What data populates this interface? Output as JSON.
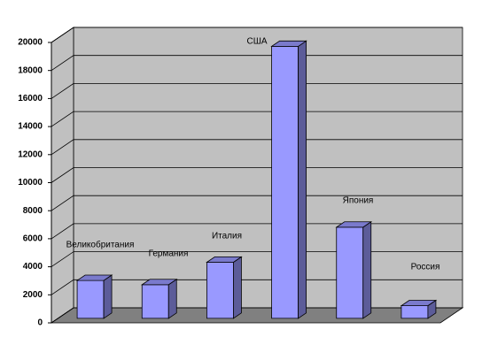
{
  "chart_data": {
    "type": "bar3d",
    "categories": [
      "Великобритания",
      "Германия",
      "Италия",
      "США",
      "Япония",
      "Россия"
    ],
    "values": [
      2700,
      2400,
      4000,
      19400,
      6500,
      900
    ],
    "color": "#9999ff",
    "ylim": [
      0,
      20000
    ],
    "yticks": [
      0,
      2000,
      4000,
      6000,
      8000,
      10000,
      12000,
      14000,
      16000,
      18000,
      20000
    ],
    "grid": true
  }
}
